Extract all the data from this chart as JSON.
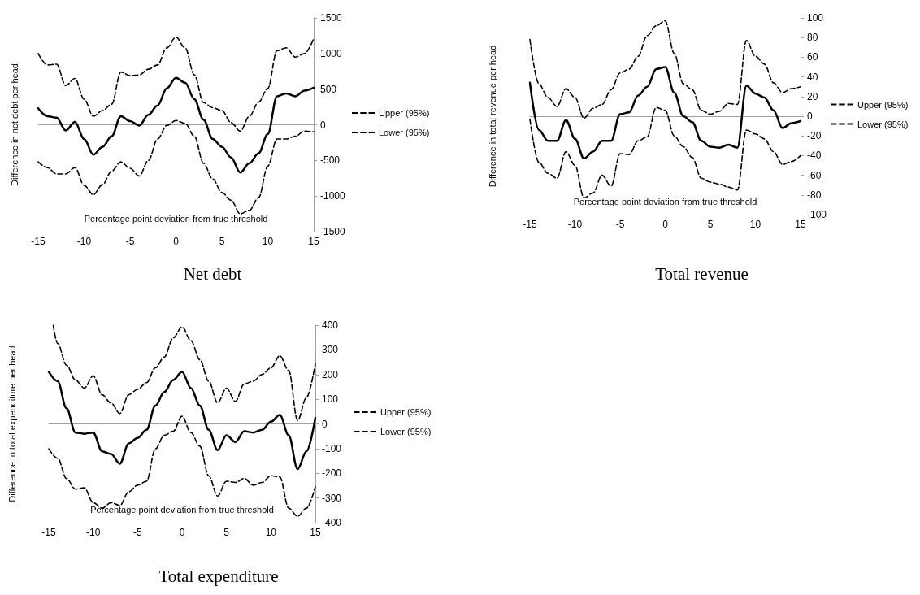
{
  "chart_data": [
    {
      "type": "line",
      "title": "Net debt",
      "xlabel": "Percentage point deviation from true threshold",
      "ylabel": "Difference in net debt per head",
      "x": [
        -15,
        -14,
        -13,
        -12,
        -11,
        -10,
        -9,
        -8,
        -7,
        -6,
        -5,
        -4,
        -3,
        -2,
        -1,
        0,
        1,
        2,
        3,
        4,
        5,
        6,
        7,
        8,
        9,
        10,
        11,
        12,
        13,
        14,
        15
      ],
      "series": [
        {
          "color": "#000000",
          "line_style": "solid",
          "values": [
            230,
            120,
            100,
            -80,
            40,
            -200,
            -420,
            -310,
            -160,
            120,
            50,
            -10,
            140,
            270,
            510,
            660,
            590,
            360,
            70,
            -200,
            -310,
            -460,
            -670,
            -540,
            -400,
            -130,
            400,
            440,
            400,
            480,
            520
          ]
        },
        {
          "name": "Upper (95%)",
          "color": "#000000",
          "line_style": "dashed",
          "values": [
            1000,
            840,
            850,
            550,
            650,
            360,
            120,
            200,
            290,
            740,
            690,
            700,
            780,
            840,
            1080,
            1230,
            1080,
            700,
            310,
            240,
            200,
            30,
            -90,
            120,
            320,
            510,
            1040,
            1080,
            950,
            1000,
            1210
          ]
        },
        {
          "name": "Lower (95%)",
          "color": "#000000",
          "line_style": "dashed",
          "values": [
            -520,
            -600,
            -690,
            -690,
            -600,
            -850,
            -980,
            -840,
            -650,
            -520,
            -610,
            -720,
            -500,
            -200,
            -10,
            60,
            20,
            -160,
            -540,
            -760,
            -950,
            -1060,
            -1250,
            -1200,
            -1020,
            -580,
            -200,
            -200,
            -160,
            -90,
            -100
          ]
        }
      ],
      "xlim": [
        -15,
        15
      ],
      "xticks": [
        -15,
        -10,
        -5,
        0,
        5,
        10,
        15
      ],
      "ylim": [
        -1500,
        1500
      ],
      "yticks": [
        -1500,
        -1000,
        -500,
        0,
        500,
        1000,
        1500
      ],
      "legend": "right",
      "marker": "none"
    },
    {
      "type": "line",
      "title": "Total revenue",
      "xlabel": "Percentage point deviation from true threshold",
      "ylabel": "Difference in total revenue per head",
      "x": [
        -15,
        -14,
        -13,
        -12,
        -11,
        -10,
        -9,
        -8,
        -7,
        -6,
        -5,
        -4,
        -3,
        -2,
        -1,
        0,
        1,
        2,
        3,
        4,
        5,
        6,
        7,
        8,
        9,
        10,
        11,
        12,
        13,
        14,
        15
      ],
      "series": [
        {
          "color": "#000000",
          "line_style": "solid",
          "values": [
            34,
            -14,
            -25,
            -25,
            -4,
            -23,
            -43,
            -36,
            -25,
            -25,
            2,
            4,
            21,
            30,
            48,
            50,
            24,
            0,
            -6,
            -25,
            -31,
            -32,
            -29,
            -32,
            31,
            23,
            19,
            6,
            -12,
            -7,
            -5
          ]
        },
        {
          "name": "Upper (95%)",
          "color": "#000000",
          "line_style": "dashed",
          "values": [
            78,
            33,
            19,
            10,
            28,
            19,
            -2,
            8,
            12,
            27,
            44,
            48,
            61,
            82,
            92,
            97,
            64,
            33,
            27,
            6,
            2,
            5,
            13,
            12,
            77,
            61,
            53,
            34,
            24,
            28,
            30
          ]
        },
        {
          "name": "Lower (95%)",
          "color": "#000000",
          "line_style": "dashed",
          "values": [
            -3,
            -47,
            -58,
            -63,
            -36,
            -50,
            -83,
            -78,
            -60,
            -71,
            -38,
            -39,
            -25,
            -21,
            9,
            6,
            -20,
            -31,
            -42,
            -63,
            -67,
            -69,
            -72,
            -75,
            -14,
            -18,
            -23,
            -36,
            -49,
            -46,
            -40
          ]
        }
      ],
      "xlim": [
        -15,
        15
      ],
      "xticks": [
        -15,
        -10,
        -5,
        0,
        5,
        10,
        15
      ],
      "ylim": [
        -100,
        100
      ],
      "yticks": [
        -100,
        -80,
        -60,
        -40,
        -20,
        0,
        20,
        40,
        60,
        80,
        100
      ],
      "legend": "right",
      "marker": "none"
    },
    {
      "type": "line",
      "title": "Total expenditure",
      "xlabel": "Percentage point deviation from true threshold",
      "ylabel": "Difference in total expenditure per head",
      "x": [
        -15,
        -14,
        -13,
        -12,
        -11,
        -10,
        -9,
        -8,
        -7,
        -6,
        -5,
        -4,
        -3,
        -2,
        -1,
        0,
        1,
        2,
        3,
        4,
        5,
        6,
        7,
        8,
        9,
        10,
        11,
        12,
        13,
        14,
        15
      ],
      "series": [
        {
          "color": "#000000",
          "line_style": "solid",
          "values": [
            211,
            173,
            63,
            -35,
            -40,
            -35,
            -111,
            -122,
            -161,
            -79,
            -57,
            -24,
            74,
            129,
            178,
            211,
            145,
            74,
            -24,
            -106,
            -46,
            -73,
            -30,
            -35,
            -24,
            9,
            36,
            -46,
            -183,
            -111,
            25
          ]
        },
        {
          "name": "Upper (95%)",
          "color": "#000000",
          "line_style": "dashed",
          "x": [
            -14.5,
            -14,
            -13,
            -12,
            -11,
            -10,
            -9,
            -8,
            -7,
            -6,
            -5,
            -4,
            -3,
            -2,
            -1,
            0,
            1,
            2,
            3,
            4,
            5,
            6,
            7,
            8,
            9,
            10,
            11,
            12,
            13,
            14,
            15
          ],
          "values": [
            400,
            326,
            238,
            178,
            145,
            195,
            118,
            85,
            42,
            118,
            140,
            167,
            227,
            271,
            348,
            393,
            337,
            260,
            173,
            85,
            145,
            91,
            162,
            173,
            200,
            227,
            276,
            216,
            14,
            107,
            244
          ]
        },
        {
          "name": "Lower (95%)",
          "color": "#000000",
          "line_style": "dashed",
          "values": [
            -101,
            -139,
            -221,
            -264,
            -259,
            -319,
            -341,
            -319,
            -330,
            -275,
            -248,
            -232,
            -101,
            -46,
            -30,
            31,
            -35,
            -90,
            -210,
            -292,
            -232,
            -237,
            -221,
            -248,
            -237,
            -210,
            -215,
            -341,
            -374,
            -341,
            -254
          ]
        }
      ],
      "xlim": [
        -15,
        15
      ],
      "xticks": [
        -15,
        -10,
        -5,
        0,
        5,
        10,
        15
      ],
      "ylim": [
        -400,
        400
      ],
      "yticks": [
        -400,
        -300,
        -200,
        -100,
        0,
        100,
        200,
        300,
        400
      ],
      "legend": "right",
      "marker": "none"
    }
  ]
}
